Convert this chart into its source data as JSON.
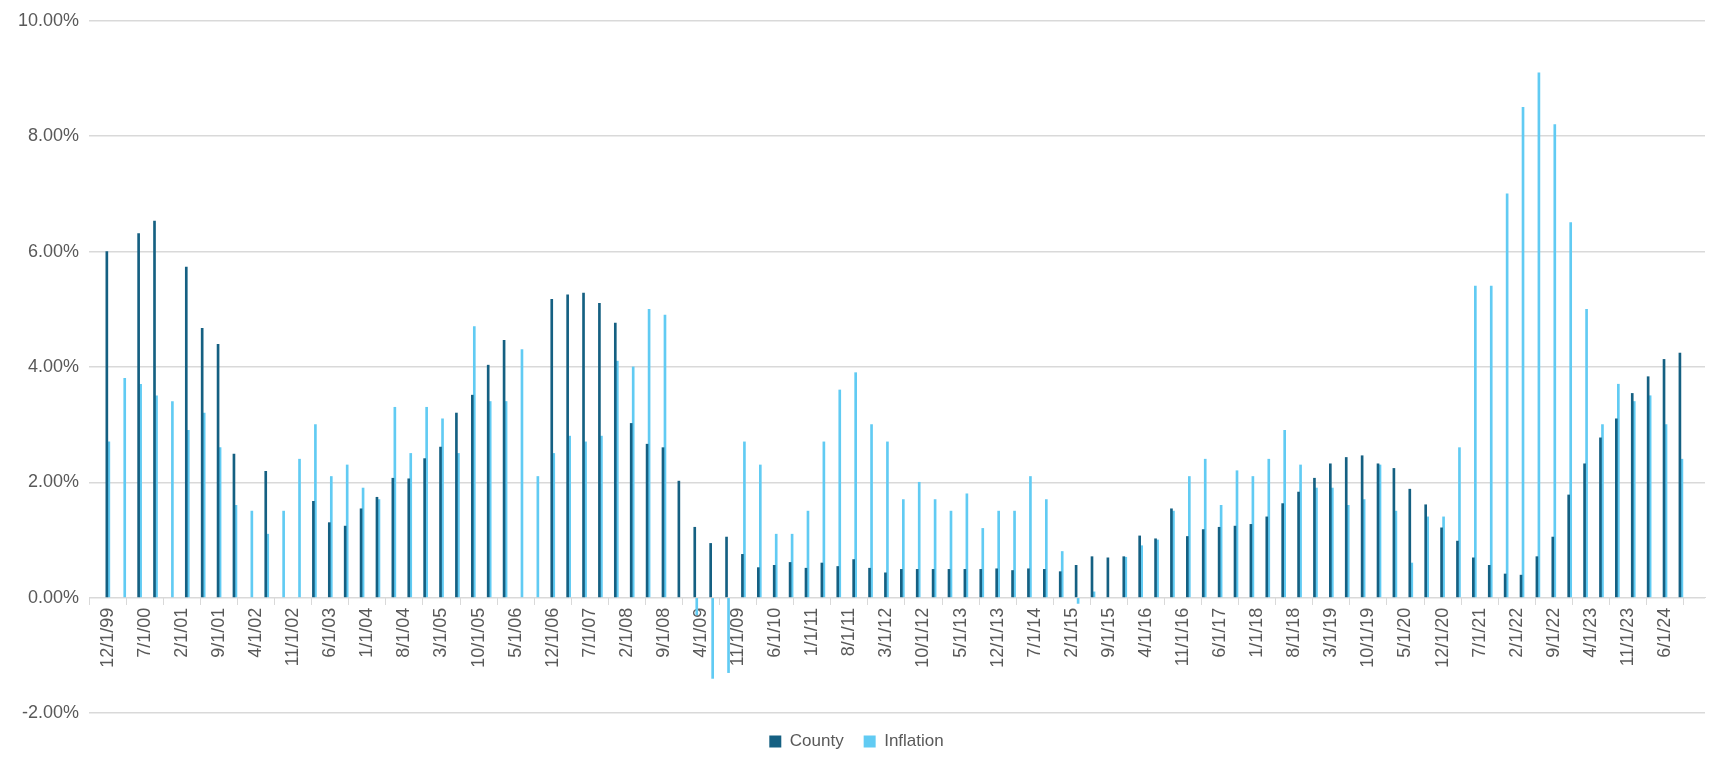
{
  "chart_data": {
    "type": "bar",
    "x": [
      "1999-12",
      "2000-03",
      "2000-06",
      "2000-09",
      "2000-12",
      "2001-03",
      "2001-06",
      "2001-09",
      "2001-12",
      "2002-03",
      "2002-06",
      "2002-09",
      "2002-12",
      "2003-03",
      "2003-06",
      "2003-09",
      "2003-12",
      "2004-03",
      "2004-06",
      "2004-09",
      "2004-12",
      "2005-03",
      "2005-06",
      "2005-09",
      "2005-12",
      "2006-03",
      "2006-06",
      "2006-09",
      "2006-12",
      "2007-03",
      "2007-06",
      "2007-09",
      "2007-12",
      "2008-03",
      "2008-06",
      "2008-09",
      "2008-12",
      "2009-03",
      "2009-06",
      "2009-09",
      "2009-12",
      "2010-03",
      "2010-06",
      "2010-09",
      "2010-12",
      "2011-03",
      "2011-06",
      "2011-09",
      "2011-12",
      "2012-03",
      "2012-06",
      "2012-09",
      "2012-12",
      "2013-03",
      "2013-06",
      "2013-09",
      "2013-12",
      "2014-03",
      "2014-06",
      "2014-09",
      "2014-12",
      "2015-03",
      "2015-06",
      "2015-09",
      "2015-12",
      "2016-03",
      "2016-06",
      "2016-09",
      "2016-12",
      "2017-03",
      "2017-06",
      "2017-09",
      "2017-12",
      "2018-03",
      "2018-06",
      "2018-09",
      "2018-12",
      "2019-03",
      "2019-06",
      "2019-09",
      "2019-12",
      "2020-03",
      "2020-06",
      "2020-09",
      "2020-12",
      "2021-03",
      "2021-06",
      "2021-09",
      "2021-12",
      "2022-03",
      "2022-06",
      "2022-09",
      "2022-12",
      "2023-03",
      "2023-06",
      "2023-09",
      "2023-12",
      "2024-03",
      "2024-06",
      "2024-09"
    ],
    "series": [
      {
        "name": "County",
        "color": "#156082",
        "values": [
          6.0,
          null,
          6.31,
          6.53,
          null,
          5.73,
          4.67,
          4.39,
          2.49,
          null,
          2.19,
          null,
          null,
          1.67,
          1.3,
          1.24,
          1.54,
          1.74,
          2.07,
          2.06,
          2.41,
          2.61,
          3.2,
          3.51,
          4.03,
          4.46,
          null,
          null,
          5.17,
          5.25,
          5.28,
          5.1,
          4.76,
          3.02,
          2.66,
          2.6,
          2.02,
          1.22,
          0.94,
          1.05,
          0.75,
          0.52,
          0.56,
          0.61,
          0.51,
          0.6,
          0.54,
          0.66,
          0.51,
          0.43,
          0.49,
          0.49,
          0.49,
          0.49,
          0.49,
          0.49,
          0.5,
          0.47,
          0.5,
          0.49,
          0.45,
          0.56,
          0.71,
          0.69,
          0.71,
          1.07,
          1.02,
          1.54,
          1.06,
          1.18,
          1.22,
          1.24,
          1.27,
          1.4,
          1.63,
          1.83,
          2.07,
          2.32,
          2.43,
          2.46,
          2.32,
          2.24,
          1.88,
          1.61,
          1.21,
          0.98,
          0.69,
          0.56,
          0.41,
          0.39,
          0.71,
          1.05,
          1.78,
          2.32,
          2.77,
          3.1,
          3.54,
          3.83,
          4.13,
          4.24
        ]
      },
      {
        "name": "Inflation",
        "color": "#61cbf3",
        "values": [
          2.7,
          3.8,
          3.7,
          3.5,
          3.4,
          2.9,
          3.2,
          2.6,
          1.6,
          1.5,
          1.1,
          1.5,
          2.4,
          3.0,
          2.1,
          2.3,
          1.9,
          1.7,
          3.3,
          2.5,
          3.3,
          3.1,
          2.5,
          4.7,
          3.4,
          3.4,
          4.3,
          2.1,
          2.5,
          2.8,
          2.7,
          2.8,
          4.1,
          4.0,
          5.0,
          4.9,
          null,
          -0.3,
          -1.4,
          -1.3,
          2.7,
          2.3,
          1.1,
          1.1,
          1.5,
          2.7,
          3.6,
          3.9,
          3.0,
          2.7,
          1.7,
          2.0,
          1.7,
          1.5,
          1.8,
          1.2,
          1.5,
          1.5,
          2.1,
          1.7,
          0.8,
          -0.1,
          0.1,
          null,
          0.7,
          0.9,
          1.0,
          1.5,
          2.1,
          2.4,
          1.6,
          2.2,
          2.1,
          2.4,
          2.9,
          2.3,
          1.9,
          1.9,
          1.6,
          1.7,
          2.3,
          1.5,
          0.6,
          1.4,
          1.4,
          2.6,
          5.4,
          5.4,
          7.0,
          8.5,
          9.1,
          8.2,
          6.5,
          5.0,
          3.0,
          3.7,
          3.4,
          3.5,
          3.0,
          2.4
        ]
      }
    ],
    "xlim": [
      "1999-12",
      "2024-10"
    ],
    "xticks": [
      {
        "value": "1999-12",
        "label": "12/1/99"
      },
      {
        "value": "2000-07",
        "label": "7/1/00"
      },
      {
        "value": "2001-02",
        "label": "2/1/01"
      },
      {
        "value": "2001-09",
        "label": "9/1/01"
      },
      {
        "value": "2002-04",
        "label": "4/1/02"
      },
      {
        "value": "2002-11",
        "label": "11/1/02"
      },
      {
        "value": "2003-06",
        "label": "6/1/03"
      },
      {
        "value": "2004-01",
        "label": "1/1/04"
      },
      {
        "value": "2004-08",
        "label": "8/1/04"
      },
      {
        "value": "2005-03",
        "label": "3/1/05"
      },
      {
        "value": "2005-10",
        "label": "10/1/05"
      },
      {
        "value": "2006-05",
        "label": "5/1/06"
      },
      {
        "value": "2006-12",
        "label": "12/1/06"
      },
      {
        "value": "2007-07",
        "label": "7/1/07"
      },
      {
        "value": "2008-02",
        "label": "2/1/08"
      },
      {
        "value": "2008-09",
        "label": "9/1/08"
      },
      {
        "value": "2009-04",
        "label": "4/1/09"
      },
      {
        "value": "2009-11",
        "label": "11/1/09"
      },
      {
        "value": "2010-06",
        "label": "6/1/10"
      },
      {
        "value": "2011-01",
        "label": "1/1/11"
      },
      {
        "value": "2011-08",
        "label": "8/1/11"
      },
      {
        "value": "2012-03",
        "label": "3/1/12"
      },
      {
        "value": "2012-10",
        "label": "10/1/12"
      },
      {
        "value": "2013-05",
        "label": "5/1/13"
      },
      {
        "value": "2013-12",
        "label": "12/1/13"
      },
      {
        "value": "2014-07",
        "label": "7/1/14"
      },
      {
        "value": "2015-02",
        "label": "2/1/15"
      },
      {
        "value": "2015-09",
        "label": "9/1/15"
      },
      {
        "value": "2016-04",
        "label": "4/1/16"
      },
      {
        "value": "2016-11",
        "label": "11/1/16"
      },
      {
        "value": "2017-06",
        "label": "6/1/17"
      },
      {
        "value": "2018-01",
        "label": "1/1/18"
      },
      {
        "value": "2018-08",
        "label": "8/1/18"
      },
      {
        "value": "2019-03",
        "label": "3/1/19"
      },
      {
        "value": "2019-10",
        "label": "10/1/19"
      },
      {
        "value": "2020-05",
        "label": "5/1/20"
      },
      {
        "value": "2020-12",
        "label": "12/1/20"
      },
      {
        "value": "2021-07",
        "label": "7/1/21"
      },
      {
        "value": "2022-02",
        "label": "2/1/22"
      },
      {
        "value": "2022-09",
        "label": "9/1/22"
      },
      {
        "value": "2023-04",
        "label": "4/1/23"
      },
      {
        "value": "2023-11",
        "label": "11/1/23"
      },
      {
        "value": "2024-06",
        "label": "6/1/24"
      }
    ],
    "ylim": [
      -2,
      10
    ],
    "yticks": [
      {
        "value": -2,
        "label": "-2.00%"
      },
      {
        "value": 0,
        "label": "0.00%"
      },
      {
        "value": 2,
        "label": "2.00%"
      },
      {
        "value": 4,
        "label": "4.00%"
      },
      {
        "value": 6,
        "label": "6.00%"
      },
      {
        "value": 8,
        "label": "8.00%"
      },
      {
        "value": 10,
        "label": "10.00%"
      }
    ],
    "grid": "y",
    "legend": "bottom"
  }
}
